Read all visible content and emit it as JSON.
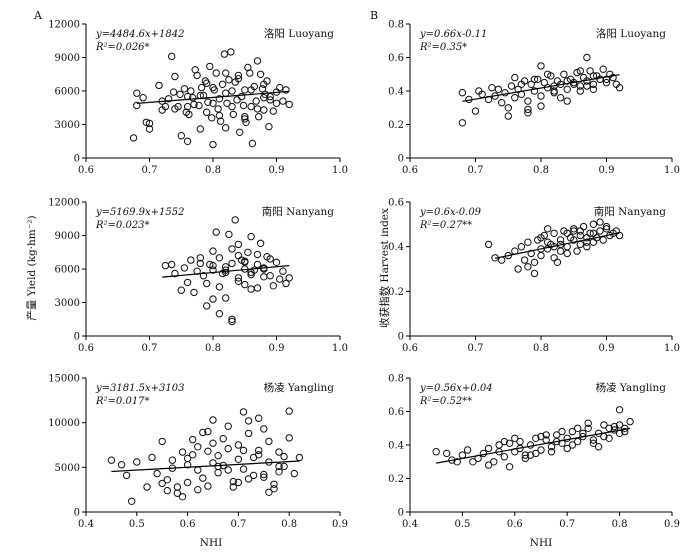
{
  "panel_letters": [
    "A",
    "B"
  ],
  "ylabel_left": "产量 Yield (kg·hm⁻²)",
  "ylabel_right": "收获指数 Harvest index",
  "xlabel": "NHI",
  "chart_data": [
    {
      "id": "luoyang-yield",
      "type": "scatter",
      "site": "洛阳 Luoyang",
      "eq_line1": "y=4484.6x+1842",
      "eq_line2": "R²=0.026*",
      "xlim": [
        0.6,
        1.0
      ],
      "xticks": [
        0.6,
        0.7,
        0.8,
        0.9,
        1.0
      ],
      "xticklabels": [
        "0.6",
        "0.7",
        "0.8",
        "0.9",
        "1.0"
      ],
      "ylim": [
        0,
        12000
      ],
      "yticks": [
        0,
        3000,
        6000,
        9000,
        12000
      ],
      "yticklabels": [
        "0",
        "3000",
        "6000",
        "9000",
        "12000"
      ],
      "fit": {
        "slope": 4484.6,
        "intercept": 1842,
        "x": [
          0.68,
          0.92
        ]
      },
      "x": [
        0.675,
        0.68,
        0.69,
        0.695,
        0.7,
        0.7,
        0.715,
        0.72,
        0.725,
        0.73,
        0.735,
        0.738,
        0.74,
        0.745,
        0.748,
        0.75,
        0.755,
        0.758,
        0.76,
        0.762,
        0.765,
        0.768,
        0.77,
        0.772,
        0.775,
        0.778,
        0.78,
        0.782,
        0.785,
        0.788,
        0.79,
        0.792,
        0.795,
        0.798,
        0.8,
        0.802,
        0.805,
        0.808,
        0.81,
        0.812,
        0.815,
        0.818,
        0.82,
        0.822,
        0.825,
        0.828,
        0.83,
        0.832,
        0.835,
        0.838,
        0.84,
        0.842,
        0.845,
        0.848,
        0.85,
        0.852,
        0.855,
        0.858,
        0.86,
        0.862,
        0.865,
        0.868,
        0.87,
        0.872,
        0.875,
        0.878,
        0.88,
        0.882,
        0.885,
        0.888,
        0.89,
        0.895,
        0.9,
        0.905,
        0.91,
        0.915,
        0.92,
        0.68,
        0.72,
        0.74,
        0.76,
        0.78,
        0.8,
        0.8,
        0.81,
        0.82,
        0.83,
        0.84,
        0.85,
        0.86,
        0.87,
        0.88,
        0.89,
        0.9,
        0.76,
        0.79,
        0.82,
        0.85,
        0.88
      ],
      "y": [
        1800,
        4700,
        5400,
        3200,
        2600,
        3100,
        6500,
        4300,
        4600,
        5300,
        9100,
        5900,
        4400,
        4600,
        5700,
        2000,
        6200,
        4100,
        1500,
        3900,
        6000,
        5400,
        4800,
        7900,
        7400,
        4700,
        2600,
        6300,
        5600,
        6900,
        4100,
        5000,
        8200,
        3600,
        1200,
        6100,
        7600,
        4400,
        5300,
        3300,
        6600,
        9300,
        2700,
        4900,
        7000,
        9500,
        6000,
        3900,
        6800,
        5200,
        7400,
        2300,
        5500,
        4700,
        6100,
        3200,
        8100,
        7600,
        4600,
        1300,
        6400,
        5100,
        8700,
        3700,
        7500,
        6200,
        4300,
        5700,
        6900,
        2800,
        5500,
        4200,
        4900,
        6300,
        5100,
        6100,
        4800,
        5800,
        5100,
        7300,
        5500,
        5600,
        6300,
        4900,
        3800,
        5800,
        4600,
        7100,
        3700,
        6100,
        4400,
        6600,
        5200,
        5900,
        4600,
        6700,
        7600,
        3500,
        5400
      ]
    },
    {
      "id": "luoyang-hi",
      "type": "scatter",
      "site": "洛阳 Luoyang",
      "eq_line1": "y=0.66x-0.11",
      "eq_line2": "R²=0.35*",
      "xlim": [
        0.6,
        1.0
      ],
      "xticks": [
        0.6,
        0.7,
        0.8,
        0.9,
        1.0
      ],
      "xticklabels": [
        "0.6",
        "0.7",
        "0.8",
        "0.9",
        "1.0"
      ],
      "ylim": [
        0,
        0.8
      ],
      "yticks": [
        0,
        0.2,
        0.4,
        0.6,
        0.8
      ],
      "yticklabels": [
        "0",
        "0.2",
        "0.4",
        "0.6",
        "0.8"
      ],
      "fit": {
        "slope": 0.66,
        "intercept": -0.11,
        "x": [
          0.68,
          0.92
        ]
      },
      "x": [
        0.68,
        0.68,
        0.69,
        0.7,
        0.705,
        0.71,
        0.72,
        0.725,
        0.73,
        0.735,
        0.74,
        0.745,
        0.75,
        0.755,
        0.76,
        0.765,
        0.77,
        0.775,
        0.78,
        0.785,
        0.79,
        0.795,
        0.8,
        0.805,
        0.81,
        0.815,
        0.82,
        0.825,
        0.83,
        0.835,
        0.84,
        0.845,
        0.85,
        0.855,
        0.86,
        0.865,
        0.87,
        0.875,
        0.88,
        0.885,
        0.89,
        0.895,
        0.9,
        0.905,
        0.91,
        0.915,
        0.92,
        0.76,
        0.78,
        0.8,
        0.82,
        0.84,
        0.86,
        0.88,
        0.9,
        0.77,
        0.79,
        0.81,
        0.83,
        0.85,
        0.87,
        0.89,
        0.8,
        0.82,
        0.84,
        0.86,
        0.88,
        0.87,
        0.75,
        0.78
      ],
      "y": [
        0.21,
        0.39,
        0.35,
        0.28,
        0.4,
        0.38,
        0.35,
        0.42,
        0.37,
        0.41,
        0.33,
        0.39,
        0.3,
        0.43,
        0.36,
        0.41,
        0.38,
        0.46,
        0.34,
        0.44,
        0.4,
        0.47,
        0.37,
        0.45,
        0.42,
        0.49,
        0.39,
        0.46,
        0.44,
        0.5,
        0.41,
        0.47,
        0.45,
        0.51,
        0.43,
        0.48,
        0.46,
        0.52,
        0.44,
        0.49,
        0.47,
        0.53,
        0.45,
        0.5,
        0.48,
        0.44,
        0.42,
        0.48,
        0.29,
        0.31,
        0.4,
        0.34,
        0.52,
        0.41,
        0.47,
        0.44,
        0.47,
        0.5,
        0.36,
        0.44,
        0.43,
        0.47,
        0.55,
        0.43,
        0.46,
        0.4,
        0.49,
        0.6,
        0.25,
        0.27
      ]
    },
    {
      "id": "nanyang-yield",
      "type": "scatter",
      "site": "南阳 Nanyang",
      "eq_line1": "y=5169.9x+1552",
      "eq_line2": "R²=0.023*",
      "xlim": [
        0.6,
        1.0
      ],
      "xticks": [
        0.6,
        0.7,
        0.8,
        0.9,
        1.0
      ],
      "xticklabels": [
        "0.6",
        "0.7",
        "0.8",
        "0.9",
        "1.0"
      ],
      "ylim": [
        0,
        12000
      ],
      "yticks": [
        0,
        3000,
        6000,
        9000,
        12000
      ],
      "yticklabels": [
        "0",
        "3000",
        "6000",
        "9000",
        "12000"
      ],
      "fit": {
        "slope": 5169.9,
        "intercept": 1552,
        "x": [
          0.72,
          0.92
        ]
      },
      "x": [
        0.725,
        0.735,
        0.74,
        0.75,
        0.755,
        0.76,
        0.765,
        0.77,
        0.775,
        0.78,
        0.785,
        0.79,
        0.795,
        0.8,
        0.805,
        0.81,
        0.815,
        0.82,
        0.825,
        0.83,
        0.835,
        0.84,
        0.845,
        0.85,
        0.855,
        0.86,
        0.865,
        0.87,
        0.875,
        0.88,
        0.885,
        0.89,
        0.895,
        0.9,
        0.905,
        0.91,
        0.915,
        0.92,
        0.8,
        0.81,
        0.82,
        0.83,
        0.84,
        0.85,
        0.86,
        0.87,
        0.88,
        0.89,
        0.79,
        0.8,
        0.81,
        0.82,
        0.83,
        0.84,
        0.85,
        0.86,
        0.87,
        0.88,
        0.8,
        0.82,
        0.84,
        0.86,
        0.78,
        0.83,
        0.85
      ],
      "y": [
        6300,
        6400,
        5600,
        4100,
        6100,
        4800,
        6800,
        3900,
        5800,
        7000,
        5400,
        4700,
        6400,
        3300,
        9300,
        2000,
        5600,
        3400,
        9100,
        1500,
        10400,
        5200,
        6800,
        4600,
        7500,
        8900,
        5900,
        4300,
        8300,
        6100,
        7100,
        5400,
        4500,
        6600,
        5100,
        5800,
        4700,
        5200,
        6300,
        7000,
        5900,
        6500,
        7200,
        6000,
        5700,
        6400,
        5300,
        6900,
        2700,
        5900,
        4400,
        6200,
        7800,
        4900,
        6700,
        5500,
        7300,
        6000,
        7600,
        5700,
        8200,
        4200,
        6500,
        1300,
        6600
      ]
    },
    {
      "id": "nanyang-hi",
      "type": "scatter",
      "site": "南阳 Nanyang",
      "eq_line1": "y=0.6x-0.09",
      "eq_line2": "R²=0.27**",
      "xlim": [
        0.6,
        1.0
      ],
      "xticks": [
        0.6,
        0.7,
        0.8,
        0.9,
        1.0
      ],
      "xticklabels": [
        "0.6",
        "0.7",
        "0.8",
        "0.9",
        "1.0"
      ],
      "ylim": [
        0,
        0.6
      ],
      "yticks": [
        0,
        0.2,
        0.4,
        0.6
      ],
      "yticklabels": [
        "0",
        "0.2",
        "0.4",
        "0.6"
      ],
      "fit": {
        "slope": 0.6,
        "intercept": -0.09,
        "x": [
          0.73,
          0.92
        ]
      },
      "x": [
        0.72,
        0.73,
        0.74,
        0.75,
        0.76,
        0.765,
        0.77,
        0.775,
        0.78,
        0.785,
        0.79,
        0.795,
        0.8,
        0.805,
        0.81,
        0.815,
        0.82,
        0.825,
        0.83,
        0.835,
        0.84,
        0.845,
        0.85,
        0.855,
        0.86,
        0.865,
        0.87,
        0.875,
        0.88,
        0.885,
        0.89,
        0.895,
        0.9,
        0.905,
        0.91,
        0.915,
        0.92,
        0.79,
        0.8,
        0.81,
        0.82,
        0.83,
        0.84,
        0.85,
        0.86,
        0.87,
        0.88,
        0.78,
        0.8,
        0.82,
        0.84,
        0.86,
        0.88,
        0.9,
        0.81,
        0.83,
        0.85,
        0.87,
        0.89
      ],
      "y": [
        0.41,
        0.35,
        0.34,
        0.36,
        0.38,
        0.3,
        0.4,
        0.34,
        0.42,
        0.37,
        0.28,
        0.43,
        0.36,
        0.45,
        0.39,
        0.41,
        0.46,
        0.33,
        0.43,
        0.47,
        0.4,
        0.44,
        0.48,
        0.38,
        0.45,
        0.49,
        0.42,
        0.46,
        0.5,
        0.44,
        0.47,
        0.43,
        0.48,
        0.45,
        0.46,
        0.47,
        0.45,
        0.33,
        0.44,
        0.48,
        0.35,
        0.41,
        0.37,
        0.43,
        0.41,
        0.44,
        0.46,
        0.31,
        0.39,
        0.4,
        0.46,
        0.47,
        0.42,
        0.49,
        0.42,
        0.38,
        0.47,
        0.4,
        0.51
      ]
    },
    {
      "id": "yangling-yield",
      "type": "scatter",
      "site": "杨凌 Yangling",
      "eq_line1": "y=3181.5x+3103",
      "eq_line2": "R²=0.017*",
      "xlim": [
        0.4,
        0.9
      ],
      "xticks": [
        0.4,
        0.5,
        0.6,
        0.7,
        0.8,
        0.9
      ],
      "xticklabels": [
        "0.4",
        "0.5",
        "0.6",
        "0.7",
        "0.8",
        "0.9"
      ],
      "ylim": [
        0,
        15000
      ],
      "yticks": [
        0,
        5000,
        10000,
        15000
      ],
      "yticklabels": [
        "0",
        "5000",
        "10000",
        "15000"
      ],
      "fit": {
        "slope": 3181.5,
        "intercept": 3103,
        "x": [
          0.45,
          0.82
        ]
      },
      "x": [
        0.45,
        0.47,
        0.48,
        0.49,
        0.5,
        0.52,
        0.53,
        0.54,
        0.55,
        0.56,
        0.57,
        0.58,
        0.59,
        0.6,
        0.61,
        0.62,
        0.63,
        0.64,
        0.65,
        0.66,
        0.67,
        0.68,
        0.69,
        0.7,
        0.71,
        0.72,
        0.73,
        0.74,
        0.75,
        0.76,
        0.77,
        0.78,
        0.79,
        0.8,
        0.81,
        0.82,
        0.55,
        0.57,
        0.59,
        0.61,
        0.63,
        0.65,
        0.67,
        0.69,
        0.71,
        0.73,
        0.75,
        0.77,
        0.79,
        0.6,
        0.62,
        0.64,
        0.66,
        0.68,
        0.7,
        0.72,
        0.74,
        0.76,
        0.78,
        0.58,
        0.62,
        0.66,
        0.7,
        0.74,
        0.78,
        0.56,
        0.6,
        0.64,
        0.68,
        0.72,
        0.76,
        0.8,
        0.65,
        0.71,
        0.75
      ],
      "y": [
        5800,
        5300,
        4100,
        1200,
        5600,
        2800,
        6100,
        4300,
        7900,
        3600,
        5800,
        2100,
        6700,
        3300,
        8100,
        4700,
        8900,
        2900,
        10300,
        6300,
        5200,
        9600,
        3400,
        7500,
        4800,
        8800,
        6100,
        10500,
        4200,
        7900,
        2600,
        6700,
        5100,
        11300,
        4300,
        6100,
        3200,
        4900,
        1700,
        6400,
        3800,
        5500,
        8200,
        2800,
        6900,
        4100,
        9300,
        3100,
        6200,
        5300,
        2500,
        6800,
        4400,
        7100,
        5900,
        3700,
        6400,
        2200,
        5100,
        2800,
        7300,
        5100,
        3300,
        6900,
        4500,
        2400,
        6000,
        9000,
        4700,
        10200,
        5600,
        8300,
        7700,
        11200,
        3900
      ]
    },
    {
      "id": "yangling-hi",
      "type": "scatter",
      "site": "杨凌 Yangling",
      "eq_line1": "y=0.56x+0.04",
      "eq_line2": "R²=0.52**",
      "xlim": [
        0.4,
        0.9
      ],
      "xticks": [
        0.4,
        0.5,
        0.6,
        0.7,
        0.8,
        0.9
      ],
      "xticklabels": [
        "0.4",
        "0.5",
        "0.6",
        "0.7",
        "0.8",
        "0.9"
      ],
      "ylim": [
        0,
        0.8
      ],
      "yticks": [
        0,
        0.2,
        0.4,
        0.6,
        0.8
      ],
      "yticklabels": [
        "0",
        "0.2",
        "0.4",
        "0.6",
        "0.8"
      ],
      "fit": {
        "slope": 0.56,
        "intercept": 0.04,
        "x": [
          0.45,
          0.82
        ]
      },
      "x": [
        0.45,
        0.47,
        0.48,
        0.49,
        0.5,
        0.51,
        0.52,
        0.53,
        0.54,
        0.55,
        0.56,
        0.57,
        0.58,
        0.59,
        0.6,
        0.61,
        0.62,
        0.63,
        0.64,
        0.65,
        0.66,
        0.67,
        0.68,
        0.69,
        0.7,
        0.71,
        0.72,
        0.73,
        0.74,
        0.75,
        0.76,
        0.77,
        0.78,
        0.79,
        0.8,
        0.81,
        0.82,
        0.55,
        0.57,
        0.59,
        0.61,
        0.63,
        0.65,
        0.67,
        0.69,
        0.71,
        0.73,
        0.75,
        0.77,
        0.79,
        0.81,
        0.6,
        0.64,
        0.68,
        0.72,
        0.76,
        0.8,
        0.58,
        0.62,
        0.66,
        0.7,
        0.74,
        0.78,
        0.8
      ],
      "y": [
        0.36,
        0.35,
        0.31,
        0.3,
        0.34,
        0.37,
        0.3,
        0.32,
        0.35,
        0.38,
        0.3,
        0.4,
        0.33,
        0.41,
        0.36,
        0.42,
        0.34,
        0.4,
        0.44,
        0.37,
        0.43,
        0.39,
        0.46,
        0.41,
        0.44,
        0.48,
        0.42,
        0.45,
        0.5,
        0.43,
        0.47,
        0.52,
        0.44,
        0.49,
        0.52,
        0.5,
        0.54,
        0.28,
        0.36,
        0.27,
        0.38,
        0.34,
        0.45,
        0.36,
        0.48,
        0.4,
        0.47,
        0.41,
        0.45,
        0.51,
        0.48,
        0.44,
        0.35,
        0.42,
        0.5,
        0.39,
        0.47,
        0.42,
        0.32,
        0.46,
        0.38,
        0.53,
        0.5,
        0.61
      ]
    }
  ]
}
